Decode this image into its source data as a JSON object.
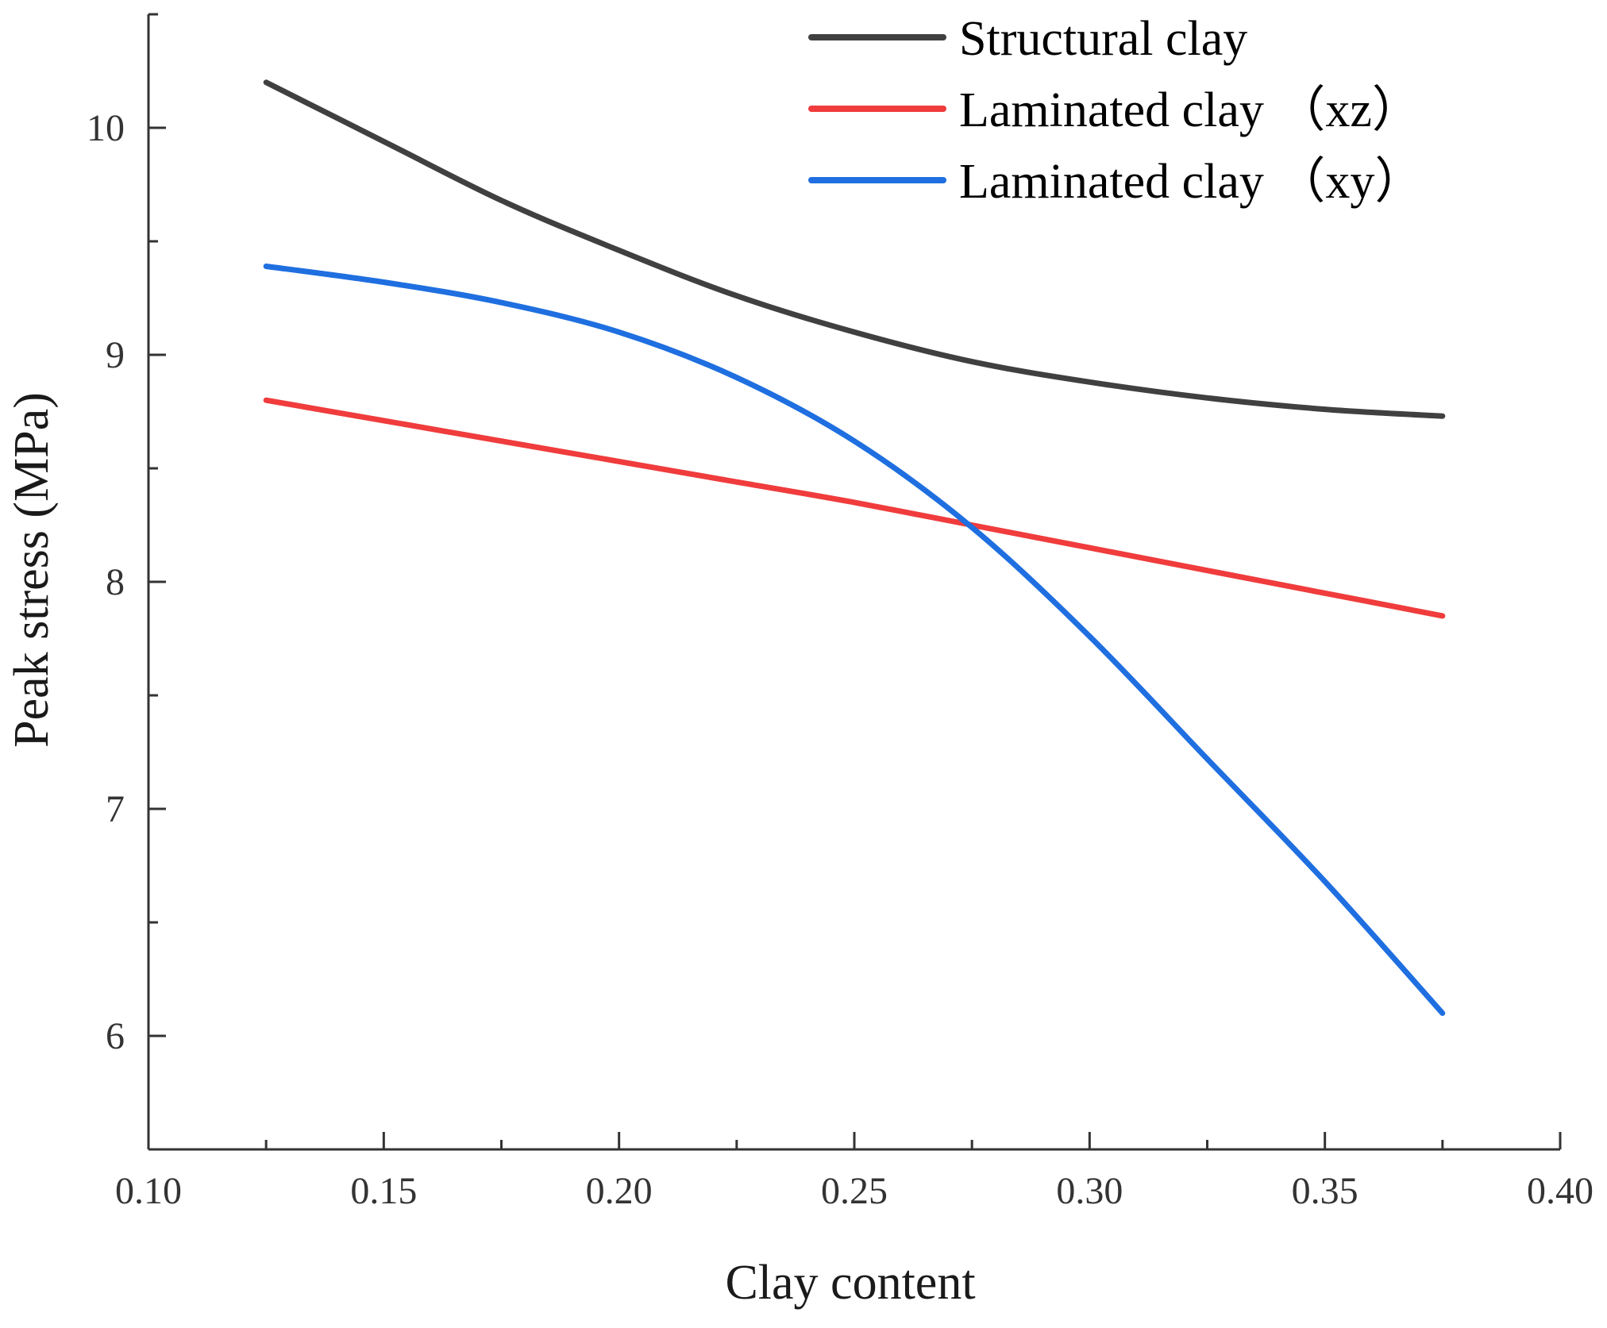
{
  "chart_data": {
    "type": "line",
    "title": "",
    "xlabel": "Clay content",
    "ylabel": "Peak stress (MPa)",
    "xlim": [
      0.1,
      0.4
    ],
    "ylim": [
      5.5,
      10.5
    ],
    "x_ticks": [
      "0.10",
      "0.15",
      "0.20",
      "0.25",
      "0.30",
      "0.35",
      "0.40"
    ],
    "y_ticks": [
      "6",
      "7",
      "8",
      "9",
      "10"
    ],
    "grid": false,
    "legend_position": "top-right",
    "series": [
      {
        "name": "Structural clay",
        "color": "#404040",
        "x": [
          0.125,
          0.15,
          0.175,
          0.2,
          0.225,
          0.25,
          0.275,
          0.3,
          0.325,
          0.35,
          0.375
        ],
        "y": [
          10.2,
          9.94,
          9.68,
          9.46,
          9.26,
          9.1,
          8.97,
          8.88,
          8.81,
          8.76,
          8.73
        ]
      },
      {
        "name": "Laminated clay （xz）",
        "color": "#f03c3c",
        "x": [
          0.125,
          0.15,
          0.175,
          0.2,
          0.225,
          0.25,
          0.275,
          0.3,
          0.325,
          0.35,
          0.375
        ],
        "y": [
          8.8,
          8.71,
          8.62,
          8.53,
          8.44,
          8.35,
          8.25,
          8.15,
          8.05,
          7.95,
          7.85
        ]
      },
      {
        "name": "Laminated clay （xy）",
        "color": "#1f6fe0",
        "x": [
          0.125,
          0.15,
          0.175,
          0.2,
          0.225,
          0.25,
          0.275,
          0.3,
          0.325,
          0.35,
          0.375
        ],
        "y": [
          9.39,
          9.32,
          9.23,
          9.1,
          8.9,
          8.62,
          8.24,
          7.76,
          7.22,
          6.68,
          6.1
        ]
      }
    ]
  }
}
